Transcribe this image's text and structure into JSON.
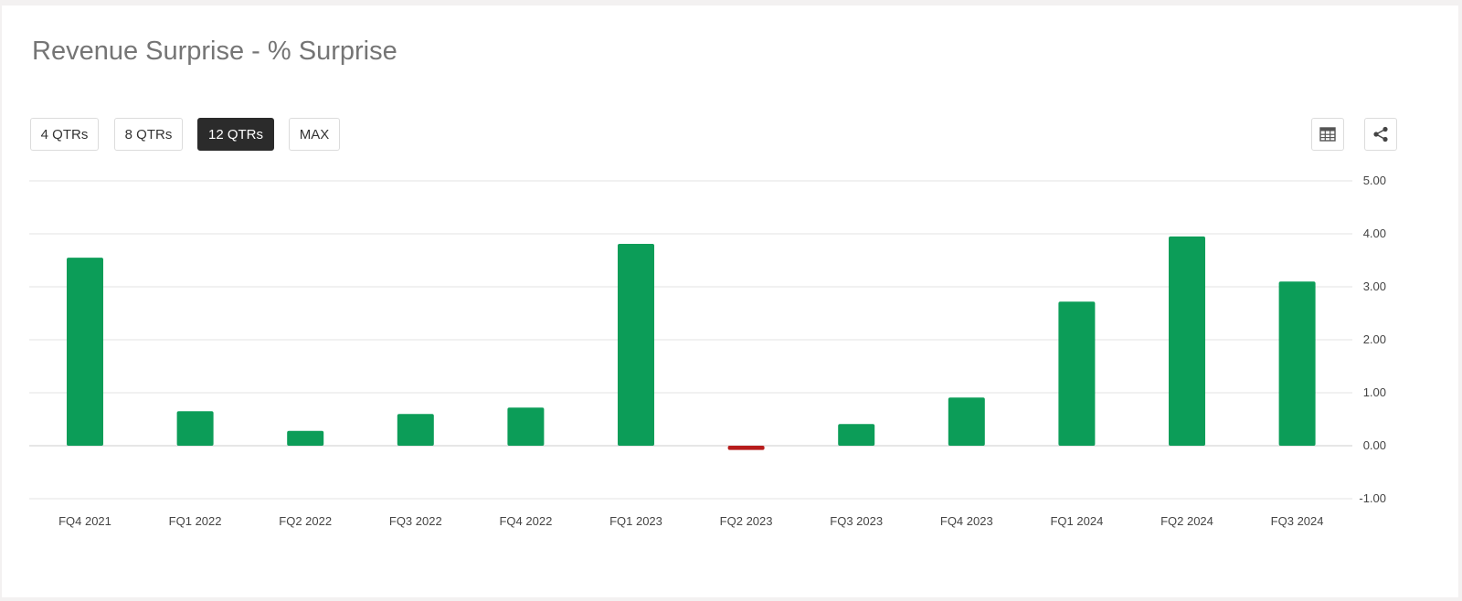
{
  "title": "Revenue Surprise - % Surprise",
  "range_buttons": [
    {
      "label": "4 QTRs",
      "active": false
    },
    {
      "label": "8 QTRs",
      "active": false
    },
    {
      "label": "12 QTRs",
      "active": true
    },
    {
      "label": "MAX",
      "active": false
    }
  ],
  "toolbar": {
    "table_icon": "table-icon",
    "share_icon": "share-icon"
  },
  "colors": {
    "positive": "#0c9d58",
    "negative": "#b71c1c",
    "grid": "#e3e3e3"
  },
  "chart_data": {
    "type": "bar",
    "title": "Revenue Surprise - % Surprise",
    "categories": [
      "FQ4 2021",
      "FQ1 2022",
      "FQ2 2022",
      "FQ3 2022",
      "FQ4 2022",
      "FQ1 2023",
      "FQ2 2023",
      "FQ3 2023",
      "FQ4 2023",
      "FQ1 2024",
      "FQ2 2024",
      "FQ3 2024"
    ],
    "values": [
      3.55,
      0.65,
      0.28,
      0.6,
      0.72,
      3.81,
      -0.08,
      0.41,
      0.91,
      2.72,
      3.95,
      3.1
    ],
    "ylim": [
      -1.0,
      5.0
    ],
    "yticks": [
      5.0,
      4.0,
      3.0,
      2.0,
      1.0,
      0.0,
      -1.0
    ],
    "ytick_labels": [
      "5.00",
      "4.00",
      "3.00",
      "2.00",
      "1.00",
      "0.00",
      "-1.00"
    ],
    "y_axis_side": "right",
    "grid": true,
    "legend": "none"
  }
}
